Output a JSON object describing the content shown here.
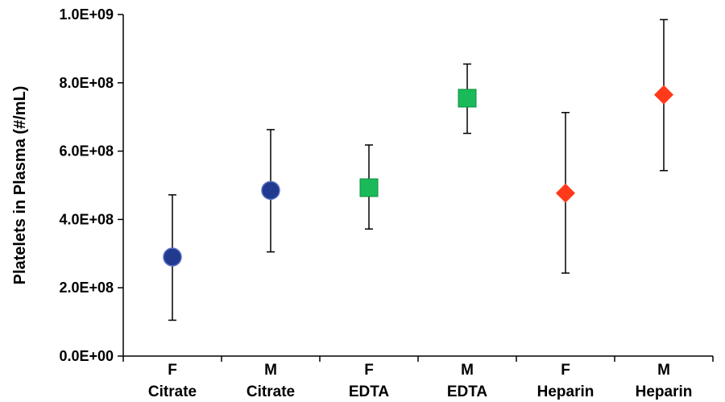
{
  "chart_data": {
    "type": "scatter",
    "title": "",
    "xlabel": "",
    "ylabel": "Platelets in Plasma (#/mL)",
    "ylim": [
      0,
      1000000000
    ],
    "yticks": [
      0,
      200000000,
      400000000,
      600000000,
      800000000,
      1000000000
    ],
    "ytick_labels": [
      "0.0E+00",
      "2.0E+08",
      "4.0E+08",
      "6.0E+08",
      "8.0E+08",
      "1.0E+09"
    ],
    "grid": false,
    "legend": "none",
    "categories": [
      {
        "line1": "F",
        "line2": "Citrate"
      },
      {
        "line1": "M",
        "line2": "Citrate"
      },
      {
        "line1": "F",
        "line2": "EDTA"
      },
      {
        "line1": "M",
        "line2": "EDTA"
      },
      {
        "line1": "F",
        "line2": "Heparin"
      },
      {
        "line1": "M",
        "line2": "Heparin"
      }
    ],
    "points": [
      {
        "category": 0,
        "value": 290000000,
        "error_low": 105000000,
        "error_high": 472000000,
        "marker": "circle",
        "color": "#1f3a8f"
      },
      {
        "category": 1,
        "value": 485000000,
        "error_low": 305000000,
        "error_high": 663000000,
        "marker": "circle",
        "color": "#1f3a8f"
      },
      {
        "category": 2,
        "value": 493000000,
        "error_low": 372000000,
        "error_high": 618000000,
        "marker": "square",
        "color": "#1aba5a"
      },
      {
        "category": 3,
        "value": 755000000,
        "error_low": 652000000,
        "error_high": 855000000,
        "marker": "square",
        "color": "#1aba5a"
      },
      {
        "category": 4,
        "value": 477000000,
        "error_low": 243000000,
        "error_high": 713000000,
        "marker": "diamond",
        "color": "#ff3a1a"
      },
      {
        "category": 5,
        "value": 765000000,
        "error_low": 543000000,
        "error_high": 985000000,
        "marker": "diamond",
        "color": "#ff3a1a"
      }
    ]
  }
}
